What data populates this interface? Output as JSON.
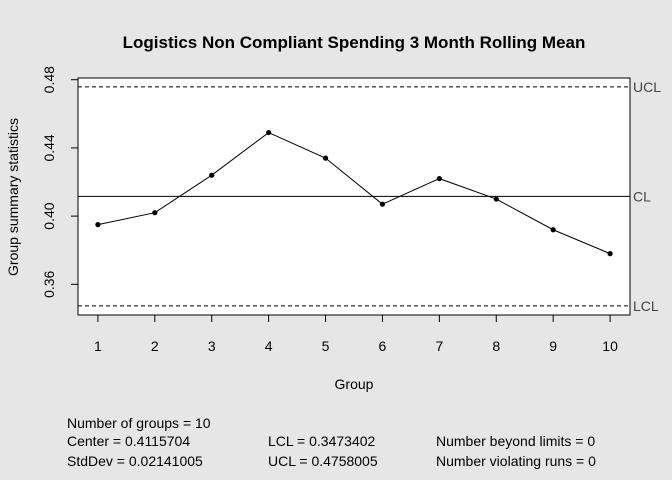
{
  "chart_data": {
    "type": "line",
    "title": "Logistics Non Compliant Spending 3 Month Rolling Mean",
    "xlabel": "Group",
    "ylabel": "Group summary statistics",
    "x": [
      1,
      2,
      3,
      4,
      5,
      6,
      7,
      8,
      9,
      10
    ],
    "values": [
      0.395,
      0.402,
      0.424,
      0.449,
      0.434,
      0.407,
      0.422,
      0.41,
      0.392,
      0.378
    ],
    "xticks": [
      "1",
      "2",
      "3",
      "4",
      "5",
      "6",
      "7",
      "8",
      "9",
      "10"
    ],
    "yticks": [
      "0.36",
      "0.40",
      "0.44",
      "0.48"
    ],
    "ylim": [
      0.342,
      0.481
    ],
    "xlim": [
      0.65,
      10.35
    ],
    "center_line": 0.4115704,
    "ucl": 0.4758005,
    "lcl": 0.3473402,
    "line_labels": {
      "ucl": "UCL",
      "center": "CL",
      "lcl": "LCL"
    }
  },
  "stats": {
    "groups": "Number of groups = 10",
    "center": "Center = 0.4115704",
    "stddev": "StdDev = 0.02141005",
    "lcl": "LCL = 0.3473402",
    "ucl": "UCL = 0.4758005",
    "beyond": "Number beyond limits = 0",
    "violating": "Number violating runs = 0"
  }
}
